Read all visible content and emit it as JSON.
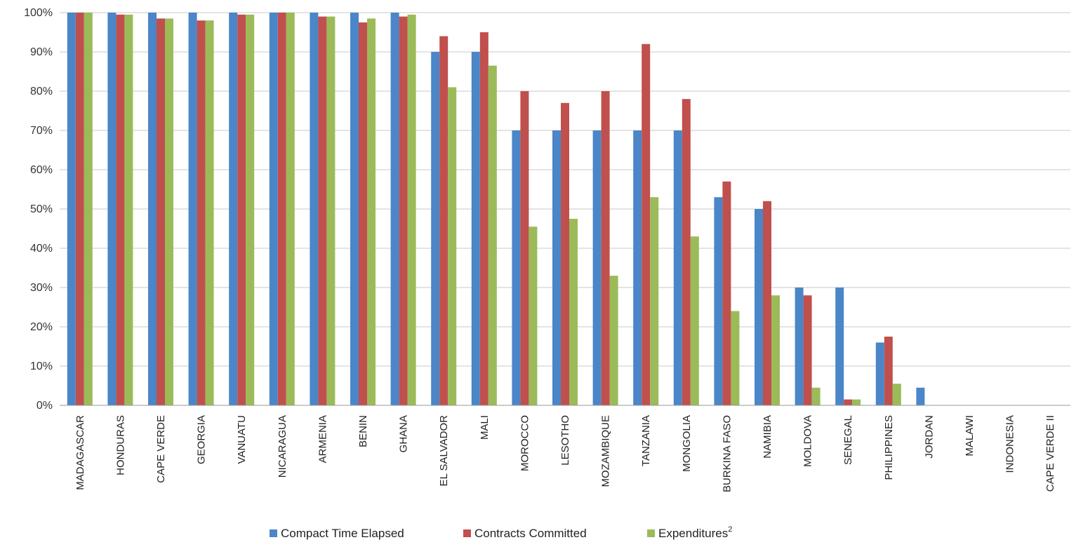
{
  "chart_data": {
    "type": "bar",
    "categories": [
      "MADAGASCAR",
      "HONDURAS",
      "CAPE VERDE",
      "GEORGIA",
      "VANUATU",
      "NICARAGUA",
      "ARMENIA",
      "BENIN",
      "GHANA",
      "EL SALVADOR",
      "MALI",
      "MOROCCO",
      "LESOTHO",
      "MOZAMBIQUE",
      "TANZANIA",
      "MONGOLIA",
      "BURKINA FASO",
      "NAMIBIA",
      "MOLDOVA",
      "SENEGAL",
      "PHILIPPINES",
      "JORDAN",
      "MALAWI",
      "INDONESIA",
      "CAPE VERDE II"
    ],
    "series": [
      {
        "name": "Compact Time Elapsed",
        "color": "#4a86c8",
        "values": [
          100,
          100,
          100,
          100,
          100,
          100,
          100,
          100,
          100,
          90,
          90,
          70,
          70,
          70,
          70,
          70,
          53,
          50,
          30,
          30,
          16,
          4.5,
          0,
          0,
          0
        ]
      },
      {
        "name": "Contracts Committed",
        "color": "#c0504d",
        "values": [
          100,
          99.5,
          98.5,
          98,
          99.5,
          100,
          99,
          97.5,
          99,
          94,
          95,
          80,
          77,
          80,
          92,
          78,
          57,
          52,
          28,
          1.5,
          17.5,
          0,
          0,
          0,
          0
        ]
      },
      {
        "name": "Expenditures",
        "legend_sup": "2",
        "color": "#9bbb59",
        "values": [
          100,
          99.5,
          98.5,
          98,
          99.5,
          100,
          99,
          98.5,
          99.5,
          81,
          86.5,
          45.5,
          47.5,
          33,
          53,
          43,
          24,
          28,
          4.5,
          1.5,
          5.5,
          0,
          0,
          0,
          0
        ]
      }
    ],
    "ylim": [
      0,
      100
    ],
    "yticks": [
      0,
      10,
      20,
      30,
      40,
      50,
      60,
      70,
      80,
      90,
      100
    ],
    "ytick_labels": [
      "0%",
      "10%",
      "20%",
      "30%",
      "40%",
      "50%",
      "60%",
      "70%",
      "80%",
      "90%",
      "100%"
    ],
    "grid": true,
    "legend_position": "bottom"
  }
}
